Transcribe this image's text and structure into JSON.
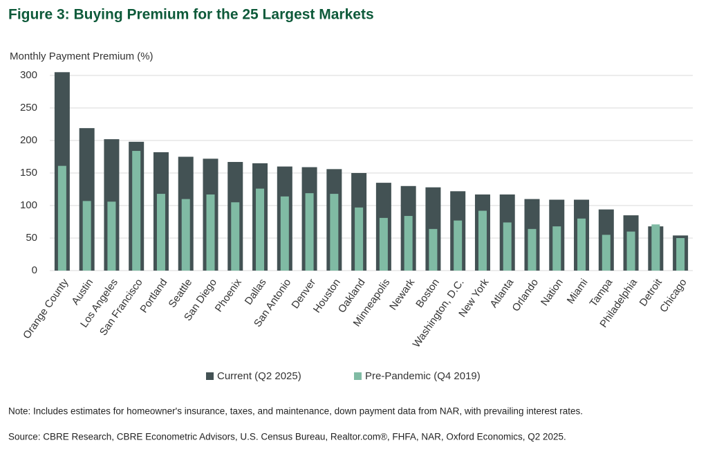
{
  "chart_data": {
    "type": "bar",
    "title": "Figure 3: Buying Premium for the 25 Largest Markets",
    "y_label": "Monthly Payment Premium (%)",
    "categories": [
      "Orange County",
      "Austin",
      "Los Angeles",
      "San Francisco",
      "Portland",
      "Seattle",
      "San Diego",
      "Phoenix",
      "Dallas",
      "San Antonio",
      "Denver",
      "Houston",
      "Oakland",
      "Minneapolis",
      "Newark",
      "Boston",
      "Washington, D.C.",
      "New York",
      "Atlanta",
      "Orlando",
      "Nation",
      "Miami",
      "Tampa",
      "Philadelphia",
      "Detroit",
      "Chicago"
    ],
    "series": [
      {
        "name": "Current (Q2 2025)",
        "color": "#435254",
        "values": [
          305,
          219,
          202,
          198,
          182,
          175,
          172,
          167,
          165,
          160,
          159,
          156,
          150,
          135,
          130,
          128,
          122,
          117,
          117,
          110,
          109,
          109,
          94,
          85,
          68,
          54
        ]
      },
      {
        "name": "Pre-Pandemic (Q4 2019)",
        "color": "#80bba4",
        "values": [
          161,
          107,
          106,
          184,
          118,
          110,
          117,
          105,
          126,
          114,
          119,
          118,
          97,
          81,
          84,
          64,
          77,
          92,
          74,
          64,
          68,
          80,
          55,
          60,
          71,
          50
        ]
      }
    ],
    "ylim": [
      0,
      300
    ],
    "yticks": [
      0,
      50,
      100,
      150,
      200,
      250,
      300
    ],
    "grid": true
  },
  "notes": {
    "note": "Note: Includes estimates for homeowner's insurance, taxes, and maintenance, down payment data from NAR, with prevailing interest rates.",
    "source": "Source: CBRE Research, CBRE Econometric Advisors, U.S. Census Bureau, Realtor.com®, FHFA, NAR, Oxford Economics, Q2 2025."
  }
}
